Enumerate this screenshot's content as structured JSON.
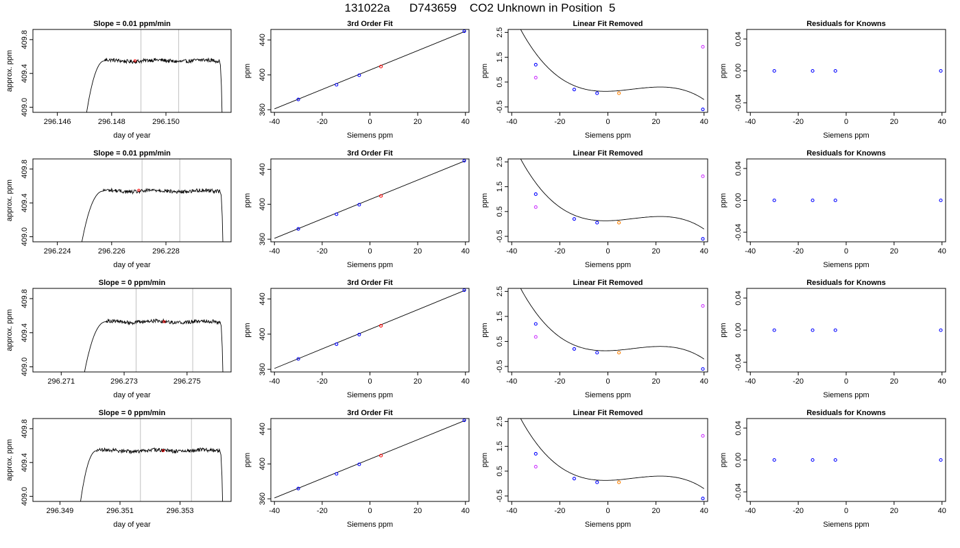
{
  "header": {
    "title": "131022a      D743659    CO2 Unknown in Position  5"
  },
  "colors": {
    "known_point": "#0000ff",
    "unknown_point": "#ff0000",
    "unknown_fit_point": "#ff8000",
    "reference_point": "#cc33ff",
    "grid_line": "#c0c0c0",
    "line": "#000000"
  },
  "chart_data": [
    {
      "type": "line",
      "row": 0,
      "col": 0,
      "title": "Slope =  0.01  ppm/min",
      "xlabel": "day of year",
      "ylabel": "approx. ppm",
      "xlim": [
        296.1451,
        296.1524
      ],
      "ylim": [
        408.94,
        409.92
      ],
      "xticks": [
        296.146,
        296.148,
        296.15
      ],
      "xtick_labels": [
        "296.146",
        "296.148",
        "296.150"
      ],
      "yticks": [
        409.0,
        409.4,
        409.8
      ],
      "ytick_labels": [
        "409.0",
        "409.4",
        "409.8"
      ],
      "trace": {
        "x_start": 296.14706,
        "rise_end": 296.14775,
        "x_end": 296.15207,
        "plateau": 409.55,
        "low": 408.9
      },
      "vlines": [
        296.14908,
        296.15047
      ],
      "marker": {
        "x": 296.14886,
        "y": 409.55
      }
    },
    {
      "type": "scatter",
      "row": 0,
      "col": 1,
      "title": "3rd Order Fit",
      "xlabel": "Siemens ppm",
      "ylabel": "ppm",
      "xlim": [
        -41.5,
        41.5
      ],
      "ylim": [
        357,
        452
      ],
      "xticks": [
        -40,
        -20,
        0,
        20,
        40
      ],
      "xtick_labels": [
        "-40",
        "-20",
        "0",
        "20",
        "40"
      ],
      "yticks": [
        360,
        400,
        440
      ],
      "ytick_labels": [
        "360",
        "400",
        "440"
      ],
      "curve": {
        "x0": -40,
        "y0": 361,
        "x1": 40,
        "y1": 450
      },
      "points": [
        {
          "x": -30,
          "y": 371.8,
          "kind": "known"
        },
        {
          "x": -14,
          "y": 388.6,
          "kind": "known"
        },
        {
          "x": -4.5,
          "y": 399.5,
          "kind": "known"
        },
        {
          "x": 4.6,
          "y": 409.5,
          "kind": "unknown"
        },
        {
          "x": 39.5,
          "y": 450.0,
          "kind": "known"
        }
      ]
    },
    {
      "type": "scatter",
      "row": 0,
      "col": 2,
      "title": "Linear Fit Removed",
      "xlabel": "Siemens ppm",
      "ylabel": "ppm",
      "xlim": [
        -41.5,
        41.5
      ],
      "ylim": [
        -0.72,
        2.62
      ],
      "xticks": [
        -40,
        -20,
        0,
        20,
        40
      ],
      "xtick_labels": [
        "-40",
        "-20",
        "0",
        "20",
        "40"
      ],
      "yticks": [
        -0.5,
        0.5,
        1.5,
        2.5
      ],
      "ytick_labels": [
        "-0.5",
        "0.5",
        "1.5",
        "2.5"
      ],
      "cubic": [
        0.128,
        0.00207,
        0.000898,
        -2.895e-05
      ],
      "points": [
        {
          "x": -30,
          "y": 1.2,
          "kind": "known"
        },
        {
          "x": -14,
          "y": 0.2,
          "kind": "known"
        },
        {
          "x": -4.5,
          "y": 0.05,
          "kind": "known"
        },
        {
          "x": 4.6,
          "y": 0.05,
          "kind": "unknown_fit"
        },
        {
          "x": 39.5,
          "y": -0.6,
          "kind": "known"
        },
        {
          "x": -30,
          "y": 0.68,
          "kind": "reference"
        },
        {
          "x": 39.5,
          "y": 1.92,
          "kind": "reference"
        }
      ]
    },
    {
      "type": "scatter",
      "row": 0,
      "col": 3,
      "title": "Residuals for Knowns",
      "xlabel": "Siemens ppm",
      "ylabel": "ppm",
      "xlim": [
        -41.5,
        41.5
      ],
      "ylim": [
        -0.052,
        0.052
      ],
      "xticks": [
        -40,
        -20,
        0,
        20,
        40
      ],
      "xtick_labels": [
        "-40",
        "-20",
        "0",
        "20",
        "40"
      ],
      "yticks": [
        -0.04,
        0.0,
        0.04
      ],
      "ytick_labels": [
        "-0.04",
        "0.00",
        "0.04"
      ],
      "points": [
        {
          "x": -30,
          "y": 0,
          "kind": "known"
        },
        {
          "x": -14,
          "y": 0,
          "kind": "known"
        },
        {
          "x": -4.5,
          "y": 0,
          "kind": "known"
        },
        {
          "x": 39.5,
          "y": 0,
          "kind": "known"
        }
      ]
    },
    {
      "type": "line",
      "row": 1,
      "col": 0,
      "title": "Slope =  0.01  ppm/min",
      "xlabel": "day of year",
      "ylabel": "approx. ppm",
      "xlim": [
        296.2231,
        296.2304
      ],
      "ylim": [
        408.94,
        409.92
      ],
      "xticks": [
        296.224,
        296.226,
        296.228
      ],
      "xtick_labels": [
        "296.224",
        "296.226",
        "296.228"
      ],
      "yticks": [
        409.0,
        409.4,
        409.8
      ],
      "ytick_labels": [
        "409.0",
        "409.4",
        "409.8"
      ],
      "trace": {
        "x_start": 296.22488,
        "rise_end": 296.2257,
        "x_end": 296.2301,
        "plateau": 409.54,
        "low": 408.9
      },
      "vlines": [
        296.22712,
        296.22851
      ],
      "marker": {
        "x": 296.227,
        "y": 409.55
      }
    },
    {
      "type": "scatter",
      "row": 1,
      "col": 1,
      "title": "3rd Order Fit",
      "xlabel": "Siemens ppm",
      "ylabel": "ppm",
      "xlim": [
        -41.5,
        41.5
      ],
      "ylim": [
        357,
        452
      ],
      "xticks": [
        -40,
        -20,
        0,
        20,
        40
      ],
      "xtick_labels": [
        "-40",
        "-20",
        "0",
        "20",
        "40"
      ],
      "yticks": [
        360,
        400,
        440
      ],
      "ytick_labels": [
        "360",
        "400",
        "440"
      ],
      "curve": {
        "x0": -40,
        "y0": 361,
        "x1": 40,
        "y1": 450
      },
      "points": [
        {
          "x": -30,
          "y": 371.8,
          "kind": "known"
        },
        {
          "x": -14,
          "y": 388.6,
          "kind": "known"
        },
        {
          "x": -4.5,
          "y": 399.5,
          "kind": "known"
        },
        {
          "x": 4.6,
          "y": 409.5,
          "kind": "unknown"
        },
        {
          "x": 39.5,
          "y": 450.0,
          "kind": "known"
        }
      ]
    },
    {
      "type": "scatter",
      "row": 1,
      "col": 2,
      "title": "Linear Fit Removed",
      "xlabel": "Siemens ppm",
      "ylabel": "ppm",
      "xlim": [
        -41.5,
        41.5
      ],
      "ylim": [
        -0.72,
        2.62
      ],
      "xticks": [
        -40,
        -20,
        0,
        20,
        40
      ],
      "xtick_labels": [
        "-40",
        "-20",
        "0",
        "20",
        "40"
      ],
      "yticks": [
        -0.5,
        0.5,
        1.5,
        2.5
      ],
      "ytick_labels": [
        "-0.5",
        "0.5",
        "1.5",
        "2.5"
      ],
      "cubic": [
        0.128,
        0.00207,
        0.000898,
        -2.895e-05
      ],
      "points": [
        {
          "x": -30,
          "y": 1.2,
          "kind": "known"
        },
        {
          "x": -14,
          "y": 0.2,
          "kind": "known"
        },
        {
          "x": -4.5,
          "y": 0.05,
          "kind": "known"
        },
        {
          "x": 4.6,
          "y": 0.05,
          "kind": "unknown_fit"
        },
        {
          "x": 39.5,
          "y": -0.6,
          "kind": "known"
        },
        {
          "x": -30,
          "y": 0.68,
          "kind": "reference"
        },
        {
          "x": 39.5,
          "y": 1.92,
          "kind": "reference"
        }
      ]
    },
    {
      "type": "scatter",
      "row": 1,
      "col": 3,
      "title": "Residuals for Knowns",
      "xlabel": "Siemens ppm",
      "ylabel": "ppm",
      "xlim": [
        -41.5,
        41.5
      ],
      "ylim": [
        -0.052,
        0.052
      ],
      "xticks": [
        -40,
        -20,
        0,
        20,
        40
      ],
      "xtick_labels": [
        "-40",
        "-20",
        "0",
        "20",
        "40"
      ],
      "yticks": [
        -0.04,
        0.0,
        0.04
      ],
      "ytick_labels": [
        "-0.04",
        "0.00",
        "0.04"
      ],
      "points": [
        {
          "x": -30,
          "y": 0,
          "kind": "known"
        },
        {
          "x": -14,
          "y": 0,
          "kind": "known"
        },
        {
          "x": -4.5,
          "y": 0,
          "kind": "known"
        },
        {
          "x": 39.5,
          "y": 0,
          "kind": "known"
        }
      ]
    },
    {
      "type": "line",
      "row": 2,
      "col": 0,
      "title": "Slope =  0  ppm/min",
      "xlabel": "day of year",
      "ylabel": "approx. ppm",
      "xlim": [
        296.2701,
        296.2764
      ],
      "ylim": [
        408.94,
        409.92
      ],
      "xticks": [
        296.271,
        296.273,
        296.275
      ],
      "xtick_labels": [
        "296.271",
        "296.273",
        "296.275"
      ],
      "yticks": [
        409.0,
        409.4,
        409.8
      ],
      "ytick_labels": [
        "409.0",
        "409.4",
        "409.8"
      ],
      "trace": {
        "x_start": 296.27172,
        "rise_end": 296.27243,
        "x_end": 296.27614,
        "plateau": 409.53,
        "low": 408.9
      },
      "vlines": [
        296.27338,
        296.27518
      ],
      "marker": {
        "x": 296.27427,
        "y": 409.53
      }
    },
    {
      "type": "scatter",
      "row": 2,
      "col": 1,
      "title": "3rd Order Fit",
      "xlabel": "Siemens ppm",
      "ylabel": "ppm",
      "xlim": [
        -41.5,
        41.5
      ],
      "ylim": [
        357,
        452
      ],
      "xticks": [
        -40,
        -20,
        0,
        20,
        40
      ],
      "xtick_labels": [
        "-40",
        "-20",
        "0",
        "20",
        "40"
      ],
      "yticks": [
        360,
        400,
        440
      ],
      "ytick_labels": [
        "360",
        "400",
        "440"
      ],
      "curve": {
        "x0": -40,
        "y0": 361,
        "x1": 40,
        "y1": 450
      },
      "points": [
        {
          "x": -30,
          "y": 371.8,
          "kind": "known"
        },
        {
          "x": -14,
          "y": 388.6,
          "kind": "known"
        },
        {
          "x": -4.5,
          "y": 399.5,
          "kind": "known"
        },
        {
          "x": 4.6,
          "y": 409.5,
          "kind": "unknown"
        },
        {
          "x": 39.5,
          "y": 450.0,
          "kind": "known"
        }
      ]
    },
    {
      "type": "scatter",
      "row": 2,
      "col": 2,
      "title": "Linear Fit Removed",
      "xlabel": "Siemens ppm",
      "ylabel": "ppm",
      "xlim": [
        -41.5,
        41.5
      ],
      "ylim": [
        -0.72,
        2.62
      ],
      "xticks": [
        -40,
        -20,
        0,
        20,
        40
      ],
      "xtick_labels": [
        "-40",
        "-20",
        "0",
        "20",
        "40"
      ],
      "yticks": [
        -0.5,
        0.5,
        1.5,
        2.5
      ],
      "ytick_labels": [
        "-0.5",
        "0.5",
        "1.5",
        "2.5"
      ],
      "cubic": [
        0.128,
        0.00207,
        0.000898,
        -2.895e-05
      ],
      "points": [
        {
          "x": -30,
          "y": 1.2,
          "kind": "known"
        },
        {
          "x": -14,
          "y": 0.2,
          "kind": "known"
        },
        {
          "x": -4.5,
          "y": 0.05,
          "kind": "known"
        },
        {
          "x": 4.6,
          "y": 0.05,
          "kind": "unknown_fit"
        },
        {
          "x": 39.5,
          "y": -0.6,
          "kind": "known"
        },
        {
          "x": -30,
          "y": 0.68,
          "kind": "reference"
        },
        {
          "x": 39.5,
          "y": 1.92,
          "kind": "reference"
        }
      ]
    },
    {
      "type": "scatter",
      "row": 2,
      "col": 3,
      "title": "Residuals for Knowns",
      "xlabel": "Siemens ppm",
      "ylabel": "ppm",
      "xlim": [
        -41.5,
        41.5
      ],
      "ylim": [
        -0.052,
        0.052
      ],
      "xticks": [
        -40,
        -20,
        0,
        20,
        40
      ],
      "xtick_labels": [
        "-40",
        "-20",
        "0",
        "20",
        "40"
      ],
      "yticks": [
        -0.04,
        0.0,
        0.04
      ],
      "ytick_labels": [
        "-0.04",
        "0.00",
        "0.04"
      ],
      "points": [
        {
          "x": -30,
          "y": 0,
          "kind": "known"
        },
        {
          "x": -14,
          "y": 0,
          "kind": "known"
        },
        {
          "x": -4.5,
          "y": 0,
          "kind": "known"
        },
        {
          "x": 39.5,
          "y": 0,
          "kind": "known"
        }
      ]
    },
    {
      "type": "line",
      "row": 3,
      "col": 0,
      "title": "Slope =  0  ppm/min",
      "xlabel": "day of year",
      "ylabel": "approx. ppm",
      "xlim": [
        296.3481,
        296.3547
      ],
      "ylim": [
        408.94,
        409.92
      ],
      "xticks": [
        296.349,
        296.351,
        296.353
      ],
      "xtick_labels": [
        "296.349",
        "296.351",
        "296.353"
      ],
      "yticks": [
        409.0,
        409.4,
        409.8
      ],
      "ytick_labels": [
        "409.0",
        "409.4",
        "409.8"
      ],
      "trace": {
        "x_start": 296.34967,
        "rise_end": 296.35023,
        "x_end": 296.35442,
        "plateau": 409.54,
        "low": 408.9
      },
      "vlines": [
        296.35168,
        296.35338
      ],
      "marker": {
        "x": 296.35244,
        "y": 409.54
      }
    },
    {
      "type": "scatter",
      "row": 3,
      "col": 1,
      "title": "3rd Order Fit",
      "xlabel": "Siemens ppm",
      "ylabel": "ppm",
      "xlim": [
        -41.5,
        41.5
      ],
      "ylim": [
        357,
        452
      ],
      "xticks": [
        -40,
        -20,
        0,
        20,
        40
      ],
      "xtick_labels": [
        "-40",
        "-20",
        "0",
        "20",
        "40"
      ],
      "yticks": [
        360,
        400,
        440
      ],
      "ytick_labels": [
        "360",
        "400",
        "440"
      ],
      "curve": {
        "x0": -40,
        "y0": 361,
        "x1": 40,
        "y1": 450
      },
      "points": [
        {
          "x": -30,
          "y": 371.8,
          "kind": "known"
        },
        {
          "x": -14,
          "y": 388.6,
          "kind": "known"
        },
        {
          "x": -4.5,
          "y": 399.5,
          "kind": "known"
        },
        {
          "x": 4.6,
          "y": 409.5,
          "kind": "unknown"
        },
        {
          "x": 39.5,
          "y": 450.0,
          "kind": "known"
        }
      ]
    },
    {
      "type": "scatter",
      "row": 3,
      "col": 2,
      "title": "Linear Fit Removed",
      "xlabel": "Siemens ppm",
      "ylabel": "ppm",
      "xlim": [
        -41.5,
        41.5
      ],
      "ylim": [
        -0.72,
        2.62
      ],
      "xticks": [
        -40,
        -20,
        0,
        20,
        40
      ],
      "xtick_labels": [
        "-40",
        "-20",
        "0",
        "20",
        "40"
      ],
      "yticks": [
        -0.5,
        0.5,
        1.5,
        2.5
      ],
      "ytick_labels": [
        "-0.5",
        "0.5",
        "1.5",
        "2.5"
      ],
      "cubic": [
        0.128,
        0.00207,
        0.000898,
        -2.895e-05
      ],
      "points": [
        {
          "x": -30,
          "y": 1.2,
          "kind": "known"
        },
        {
          "x": -14,
          "y": 0.2,
          "kind": "known"
        },
        {
          "x": -4.5,
          "y": 0.05,
          "kind": "known"
        },
        {
          "x": 4.6,
          "y": 0.05,
          "kind": "unknown_fit"
        },
        {
          "x": 39.5,
          "y": -0.6,
          "kind": "known"
        },
        {
          "x": -30,
          "y": 0.68,
          "kind": "reference"
        },
        {
          "x": 39.5,
          "y": 1.92,
          "kind": "reference"
        }
      ]
    },
    {
      "type": "scatter",
      "row": 3,
      "col": 3,
      "title": "Residuals for Knowns",
      "xlabel": "Siemens ppm",
      "ylabel": "ppm",
      "xlim": [
        -41.5,
        41.5
      ],
      "ylim": [
        -0.052,
        0.052
      ],
      "xticks": [
        -40,
        -20,
        0,
        20,
        40
      ],
      "xtick_labels": [
        "-40",
        "-20",
        "0",
        "20",
        "40"
      ],
      "yticks": [
        -0.04,
        0.0,
        0.04
      ],
      "ytick_labels": [
        "-0.04",
        "0.00",
        "0.04"
      ],
      "points": [
        {
          "x": -30,
          "y": 0,
          "kind": "known"
        },
        {
          "x": -14,
          "y": 0,
          "kind": "known"
        },
        {
          "x": -4.5,
          "y": 0,
          "kind": "known"
        },
        {
          "x": 39.5,
          "y": 0,
          "kind": "known"
        }
      ]
    }
  ]
}
